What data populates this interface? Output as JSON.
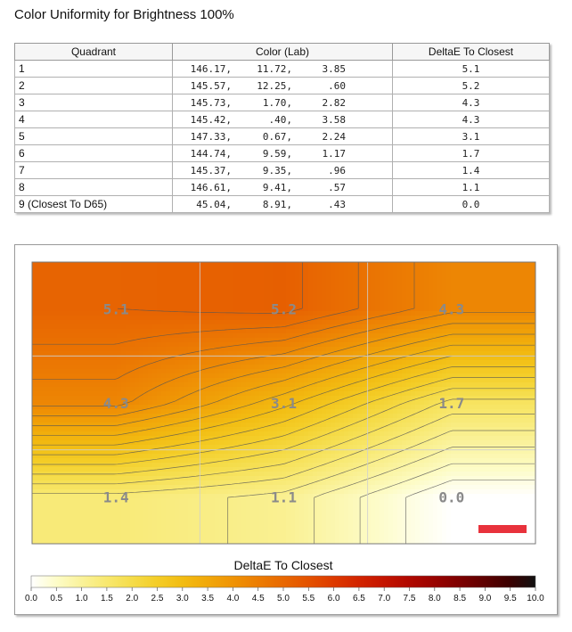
{
  "page_title": "Color Uniformity for Brightness 100%",
  "table": {
    "headers": [
      "Quadrant",
      "Color (Lab)",
      "DeltaE To Closest"
    ],
    "rows": [
      {
        "quadrant": "1",
        "L": "146.17,",
        "a": "11.72,",
        "b": "3.85",
        "delta": "5.1"
      },
      {
        "quadrant": "2",
        "L": "145.57,",
        "a": "12.25,",
        "b": ".60",
        "delta": "5.2"
      },
      {
        "quadrant": "3",
        "L": "145.73,",
        "a": "1.70,",
        "b": "2.82",
        "delta": "4.3"
      },
      {
        "quadrant": "4",
        "L": "145.42,",
        "a": ".40,",
        "b": "3.58",
        "delta": "4.3"
      },
      {
        "quadrant": "5",
        "L": "147.33,",
        "a": "0.67,",
        "b": "2.24",
        "delta": "3.1"
      },
      {
        "quadrant": "6",
        "L": "144.74,",
        "a": "9.59,",
        "b": "1.17",
        "delta": "1.7"
      },
      {
        "quadrant": "7",
        "L": "145.37,",
        "a": "9.35,",
        "b": ".96",
        "delta": "1.4"
      },
      {
        "quadrant": "8",
        "L": "146.61,",
        "a": "9.41,",
        "b": ".57",
        "delta": "1.1"
      },
      {
        "quadrant": "9 (Closest To D65)",
        "L": "45.04,",
        "a": "8.91,",
        "b": ".43",
        "delta": "0.0"
      }
    ]
  },
  "chart_data": {
    "type": "heatmap",
    "title": "DeltaE To Closest",
    "grid_layout": "3x3",
    "grid": [
      [
        5.1,
        5.2,
        4.3
      ],
      [
        4.3,
        3.1,
        1.7
      ],
      [
        1.4,
        1.1,
        0.0
      ]
    ],
    "cell_labels": [
      [
        "5.1",
        "5.2",
        "4.3"
      ],
      [
        "4.3",
        "3.1",
        "1.7"
      ],
      [
        "1.4",
        "1.1",
        "0.0"
      ]
    ],
    "colorbar": {
      "min": 0.0,
      "max": 10.0,
      "ticks": [
        "0.0",
        "0.5",
        "1.0",
        "1.5",
        "2.0",
        "2.5",
        "3.0",
        "3.5",
        "4.0",
        "4.5",
        "5.0",
        "5.5",
        "6.0",
        "6.5",
        "7.0",
        "7.5",
        "8.0",
        "8.5",
        "9.0",
        "9.5",
        "10.0"
      ],
      "colors": [
        "#ffffff",
        "#fdfcc8",
        "#faf29a",
        "#f8e86f",
        "#f5dc49",
        "#f4cd27",
        "#f2bc12",
        "#f1a80a",
        "#ef9305",
        "#ec7d03",
        "#e86802",
        "#e45200",
        "#dd3a00",
        "#d22400",
        "#c41400",
        "#b00800",
        "#990300",
        "#7d0000",
        "#5d0000",
        "#3a0000",
        "#111111"
      ]
    },
    "grid_lines": true,
    "marker_color": "#e8323c",
    "colors": {
      "contour": "#555555",
      "label": "#8a8a8a"
    }
  }
}
